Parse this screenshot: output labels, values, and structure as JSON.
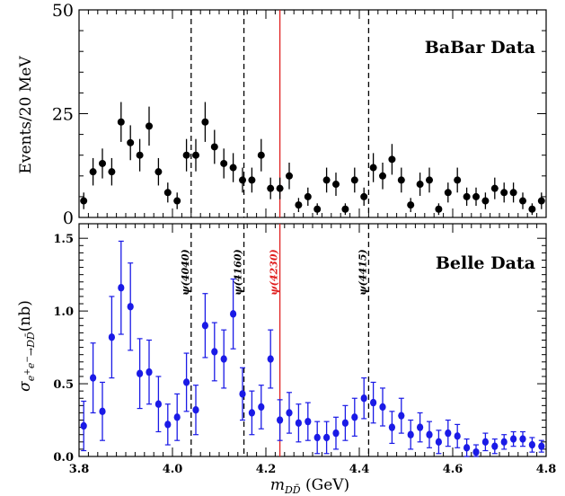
{
  "chart_data": [
    {
      "type": "scatter",
      "panel": "top",
      "title": "BaBar Data",
      "ylabel": "Events/20 MeV",
      "xlabel": "",
      "xlim": [
        3.8,
        4.8
      ],
      "ylim": [
        0,
        50
      ],
      "yticks": [
        "0",
        "25",
        "50"
      ],
      "color": "#000000",
      "series": [
        {
          "x": [
            3.81,
            3.83,
            3.85,
            3.87,
            3.89,
            3.91,
            3.93,
            3.95,
            3.97,
            3.99,
            4.01,
            4.03,
            4.05,
            4.07,
            4.09,
            4.11,
            4.13,
            4.15,
            4.17,
            4.19,
            4.21,
            4.23,
            4.25,
            4.27,
            4.29,
            4.31,
            4.33,
            4.35,
            4.37,
            4.39,
            4.41,
            4.43,
            4.45,
            4.47,
            4.49,
            4.51,
            4.53,
            4.55,
            4.57,
            4.59,
            4.61,
            4.63,
            4.65,
            4.67,
            4.69,
            4.71,
            4.73,
            4.75,
            4.77,
            4.79
          ],
          "values": [
            4,
            11,
            13,
            11,
            23,
            18,
            15,
            22,
            11,
            6,
            4,
            15,
            15,
            23,
            17,
            13,
            12,
            9,
            9,
            15,
            7,
            7,
            10,
            3,
            5,
            2,
            9,
            8,
            2,
            9,
            5,
            12,
            10,
            14,
            9,
            3,
            8,
            9,
            2,
            6,
            9,
            5,
            5,
            4,
            7,
            6,
            6,
            4,
            2,
            4
          ],
          "errors": [
            2,
            3.3,
            3.6,
            3.3,
            4.8,
            4.2,
            3.9,
            4.7,
            3.3,
            2.4,
            2,
            3.9,
            3.9,
            4.8,
            4.1,
            3.6,
            3.5,
            3,
            3,
            3.9,
            2.6,
            2.6,
            3.2,
            1.7,
            2.2,
            1.4,
            3,
            2.8,
            1.4,
            3,
            2.2,
            3.5,
            3.2,
            3.7,
            3,
            1.7,
            2.8,
            3,
            1.4,
            2.4,
            3,
            2.2,
            2.2,
            2,
            2.6,
            2.4,
            2.4,
            2,
            1.4,
            2
          ]
        }
      ],
      "reference_lines": [
        {
          "x": 4.04,
          "style": "dashed",
          "color": "#000000"
        },
        {
          "x": 4.153,
          "style": "dashed",
          "color": "#000000"
        },
        {
          "x": 4.23,
          "style": "solid",
          "color": "#e02020"
        },
        {
          "x": 4.42,
          "style": "dashed",
          "color": "#000000"
        }
      ]
    },
    {
      "type": "scatter",
      "panel": "bottom",
      "title": "Belle Data",
      "ylabel": "σ_{e+e−→DD̄}(nb)",
      "xlabel": "m_{DD̄} (GeV)",
      "xlim": [
        3.8,
        4.8
      ],
      "ylim": [
        0,
        1.6
      ],
      "xticks": [
        "3.8",
        "4.0",
        "4.2",
        "4.4",
        "4.6",
        "4.8"
      ],
      "yticks": [
        "0.0",
        "0.5",
        "1.0",
        "1.5"
      ],
      "color": "#1a1ae6",
      "series": [
        {
          "x": [
            3.81,
            3.83,
            3.85,
            3.87,
            3.89,
            3.91,
            3.93,
            3.95,
            3.97,
            3.99,
            4.01,
            4.03,
            4.05,
            4.07,
            4.09,
            4.11,
            4.13,
            4.15,
            4.17,
            4.19,
            4.21,
            4.23,
            4.25,
            4.27,
            4.29,
            4.31,
            4.33,
            4.35,
            4.37,
            4.39,
            4.41,
            4.43,
            4.45,
            4.47,
            4.49,
            4.51,
            4.53,
            4.55,
            4.57,
            4.59,
            4.61,
            4.63,
            4.65,
            4.67,
            4.69,
            4.71,
            4.73,
            4.75,
            4.77,
            4.79
          ],
          "values": [
            0.21,
            0.54,
            0.31,
            0.82,
            1.16,
            1.03,
            0.57,
            0.58,
            0.36,
            0.22,
            0.27,
            0.51,
            0.32,
            0.9,
            0.72,
            0.67,
            0.98,
            0.43,
            0.3,
            0.34,
            0.67,
            0.25,
            0.3,
            0.23,
            0.24,
            0.13,
            0.13,
            0.16,
            0.23,
            0.27,
            0.4,
            0.37,
            0.34,
            0.2,
            0.28,
            0.15,
            0.2,
            0.15,
            0.1,
            0.16,
            0.14,
            0.06,
            0.03,
            0.1,
            0.07,
            0.1,
            0.12,
            0.12,
            0.08,
            0.07
          ],
          "errors": [
            0.17,
            0.24,
            0.2,
            0.28,
            0.32,
            0.3,
            0.24,
            0.22,
            0.19,
            0.14,
            0.16,
            0.2,
            0.17,
            0.22,
            0.2,
            0.2,
            0.24,
            0.18,
            0.15,
            0.15,
            0.2,
            0.14,
            0.14,
            0.13,
            0.13,
            0.11,
            0.11,
            0.11,
            0.12,
            0.13,
            0.14,
            0.14,
            0.13,
            0.11,
            0.12,
            0.1,
            0.1,
            0.09,
            0.08,
            0.09,
            0.08,
            0.06,
            0.05,
            0.06,
            0.05,
            0.05,
            0.05,
            0.05,
            0.05,
            0.04
          ]
        }
      ],
      "reference_lines": [
        {
          "x": 4.04,
          "style": "dashed",
          "color": "#000000",
          "label": "ψ(4040)"
        },
        {
          "x": 4.153,
          "style": "dashed",
          "color": "#000000",
          "label": "ψ(4160)"
        },
        {
          "x": 4.23,
          "style": "solid",
          "color": "#e02020",
          "label": "ψ(4230)"
        },
        {
          "x": 4.42,
          "style": "dashed",
          "color": "#000000",
          "label": "ψ(4415)"
        }
      ]
    }
  ]
}
